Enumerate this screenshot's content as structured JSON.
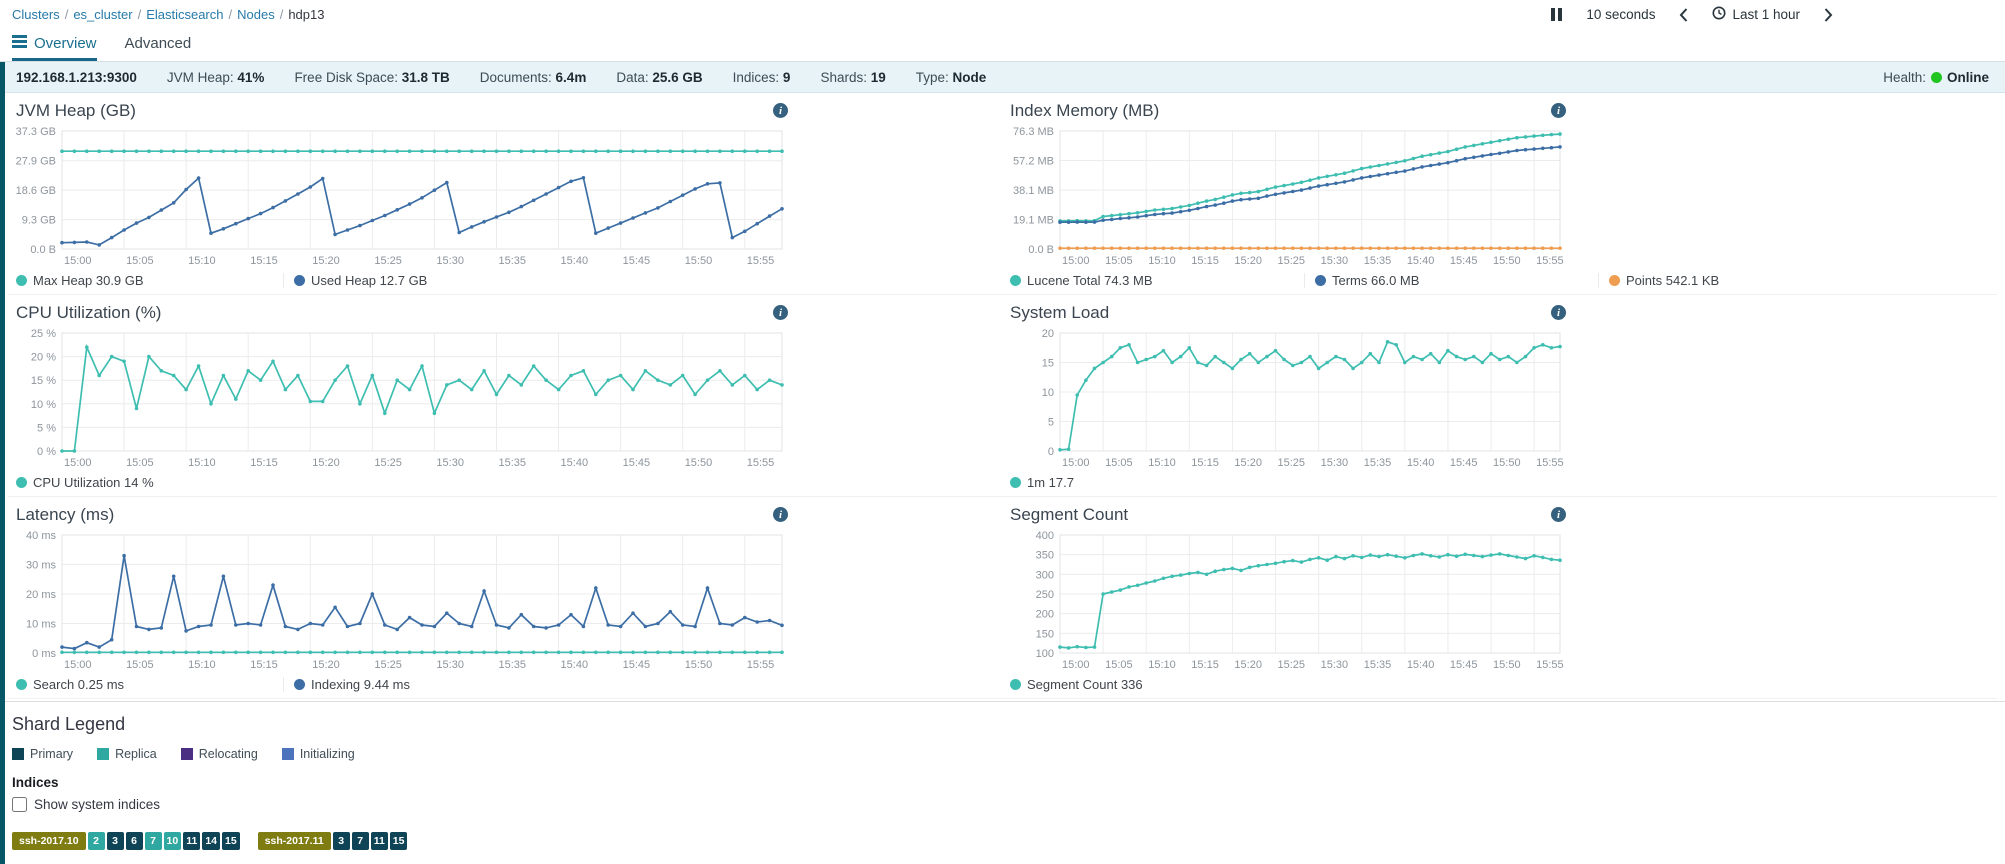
{
  "breadcrumb": {
    "links": [
      "Clusters",
      "es_cluster",
      "Elasticsearch",
      "Nodes"
    ],
    "current": "hdp13",
    "separator": "/"
  },
  "toolbar": {
    "refresh_interval": "10 seconds",
    "time_range": "Last 1 hour",
    "icons": {
      "pause": "pause-bars",
      "prev": "chevron-left",
      "clock": "clock",
      "next": "chevron-right"
    }
  },
  "tabs": [
    {
      "label": "Overview",
      "active": true,
      "icon": "list-icon"
    },
    {
      "label": "Advanced",
      "active": false
    }
  ],
  "status_bar": {
    "items": [
      {
        "label": "",
        "value": "192.168.1.213:9300"
      },
      {
        "label": "JVM Heap:",
        "value": "41%"
      },
      {
        "label": "Free Disk Space:",
        "value": "31.8 TB"
      },
      {
        "label": "Documents:",
        "value": "6.4m"
      },
      {
        "label": "Data:",
        "value": "25.6 GB"
      },
      {
        "label": "Indices:",
        "value": "9"
      },
      {
        "label": "Shards:",
        "value": "19"
      },
      {
        "label": "Type:",
        "value": "Node"
      }
    ],
    "health_label": "Health:",
    "health_value": "Online",
    "health_color": "#21c521"
  },
  "colors": {
    "teal_series": "#3ebeb0",
    "blue_series": "#3c6ea5",
    "orange_series": "#ef9d51",
    "accent_strip": "#075666",
    "active_tab": "#17678a",
    "link": "#2679a9",
    "status_bg": "#e8f3f8"
  },
  "chart_data": [
    {
      "type": "line",
      "title": "JVM Heap (GB)",
      "x_max_minutes": 58,
      "x_ticks": [
        "15:00",
        "15:05",
        "15:10",
        "15:15",
        "15:20",
        "15:25",
        "15:30",
        "15:35",
        "15:40",
        "15:45",
        "15:50",
        "15:55"
      ],
      "ylim": [
        0,
        37.3
      ],
      "y_ticks": [
        {
          "v": 37.3,
          "label": "37.3 GB"
        },
        {
          "v": 27.9,
          "label": "27.9 GB"
        },
        {
          "v": 18.6,
          "label": "18.6 GB"
        },
        {
          "v": 9.3,
          "label": "9.3 GB"
        },
        {
          "v": 0,
          "label": "0.0 B"
        }
      ],
      "series": [
        {
          "name": "Max Heap",
          "legend": "Max Heap 30.9 GB",
          "color": "#3ebeb0",
          "constant": 30.9
        },
        {
          "name": "Used Heap",
          "legend": "Used Heap 12.7 GB",
          "color": "#3c6ea5",
          "values": [
            2.0,
            2.1,
            2.2,
            1.3,
            3.6,
            6.0,
            8.2,
            10.0,
            12.3,
            14.6,
            18.8,
            22.4,
            5.0,
            6.4,
            8.0,
            9.6,
            11.2,
            13.1,
            15.2,
            17.4,
            19.6,
            22.3,
            4.6,
            6.0,
            7.4,
            9.0,
            10.6,
            12.4,
            14.2,
            16.2,
            18.6,
            21.0,
            5.2,
            7.0,
            8.6,
            10.1,
            11.6,
            13.4,
            15.4,
            17.4,
            19.4,
            21.4,
            22.5,
            5.0,
            6.6,
            8.2,
            9.8,
            11.4,
            13.0,
            15.0,
            17.0,
            19.0,
            20.6,
            20.9,
            3.6,
            5.6,
            8.0,
            10.4,
            12.7
          ]
        }
      ]
    },
    {
      "type": "line",
      "title": "Index Memory (MB)",
      "x_max_minutes": 58,
      "x_ticks": [
        "15:00",
        "15:05",
        "15:10",
        "15:15",
        "15:20",
        "15:25",
        "15:30",
        "15:35",
        "15:40",
        "15:45",
        "15:50",
        "15:55"
      ],
      "ylim": [
        0,
        76.3
      ],
      "y_ticks": [
        {
          "v": 76.3,
          "label": "76.3 MB"
        },
        {
          "v": 57.2,
          "label": "57.2 MB"
        },
        {
          "v": 38.1,
          "label": "38.1 MB"
        },
        {
          "v": 19.1,
          "label": "19.1 MB"
        },
        {
          "v": 0,
          "label": "0.0 B"
        }
      ],
      "series": [
        {
          "name": "Lucene Total",
          "legend": "Lucene Total 74.3 MB",
          "color": "#3ebeb0",
          "values": [
            18.2,
            18.2,
            18.3,
            18.2,
            18.3,
            21.0,
            21.6,
            22.2,
            22.8,
            23.4,
            24.3,
            25.2,
            25.7,
            26.2,
            27.2,
            28.2,
            29.6,
            31.0,
            32.1,
            33.5,
            35.0,
            36.0,
            36.5,
            37.1,
            38.6,
            40.0,
            41.0,
            42.0,
            43.1,
            44.5,
            46.0,
            47.0,
            48.0,
            49.0,
            50.5,
            52.0,
            53.0,
            54.0,
            55.0,
            56.0,
            57.0,
            58.5,
            60.0,
            61.0,
            62.0,
            63.0,
            64.5,
            66.0,
            67.0,
            68.0,
            69.0,
            70.0,
            71.0,
            72.0,
            72.5,
            73.0,
            73.5,
            74.0,
            74.3
          ]
        },
        {
          "name": "Terms",
          "legend": "Terms 66.0 MB",
          "color": "#3c6ea5",
          "values": [
            17.3,
            17.3,
            17.4,
            17.3,
            17.4,
            18.6,
            19.1,
            19.7,
            20.2,
            20.7,
            21.5,
            22.3,
            22.8,
            23.2,
            24.1,
            25.0,
            26.2,
            27.4,
            28.4,
            29.6,
            31.0,
            31.9,
            32.3,
            32.8,
            34.2,
            35.4,
            36.3,
            37.2,
            38.1,
            39.4,
            40.7,
            41.6,
            42.5,
            43.4,
            44.7,
            46.0,
            46.9,
            47.8,
            48.7,
            49.6,
            50.4,
            51.8,
            53.1,
            54.0,
            54.9,
            55.8,
            57.1,
            58.4,
            59.3,
            60.2,
            61.1,
            61.9,
            62.8,
            63.7,
            64.2,
            64.6,
            65.1,
            65.5,
            66.0
          ]
        },
        {
          "name": "Points",
          "legend": "Points 542.1 KB",
          "color": "#ef9d51",
          "constant": 0.5
        }
      ]
    },
    {
      "type": "line",
      "title": "CPU Utilization (%)",
      "x_max_minutes": 58,
      "x_ticks": [
        "15:00",
        "15:05",
        "15:10",
        "15:15",
        "15:20",
        "15:25",
        "15:30",
        "15:35",
        "15:40",
        "15:45",
        "15:50",
        "15:55"
      ],
      "ylim": [
        0,
        25
      ],
      "y_ticks": [
        {
          "v": 25,
          "label": "25 %"
        },
        {
          "v": 20,
          "label": "20 %"
        },
        {
          "v": 15,
          "label": "15 %"
        },
        {
          "v": 10,
          "label": "10 %"
        },
        {
          "v": 5,
          "label": "5 %"
        },
        {
          "v": 0,
          "label": "0 %"
        }
      ],
      "series": [
        {
          "name": "CPU Utilization",
          "legend": "CPU Utilization 14 %",
          "color": "#3ebeb0",
          "values": [
            0,
            0,
            22,
            16,
            20,
            19,
            9,
            20,
            17,
            16,
            13,
            18,
            10,
            16,
            11,
            17,
            15,
            19,
            13,
            16,
            10.5,
            10.5,
            15,
            18,
            10,
            16,
            8,
            15,
            13,
            18,
            8,
            14,
            15,
            13,
            17,
            12,
            16,
            14,
            18,
            15,
            13,
            16,
            17,
            12,
            15,
            16,
            13,
            17,
            15,
            14,
            16,
            12,
            15,
            17,
            14,
            16,
            13,
            15,
            14
          ]
        }
      ]
    },
    {
      "type": "line",
      "title": "System Load",
      "x_max_minutes": 58,
      "x_ticks": [
        "15:00",
        "15:05",
        "15:10",
        "15:15",
        "15:20",
        "15:25",
        "15:30",
        "15:35",
        "15:40",
        "15:45",
        "15:50",
        "15:55"
      ],
      "ylim": [
        0,
        20
      ],
      "y_ticks": [
        {
          "v": 20,
          "label": "20"
        },
        {
          "v": 15,
          "label": "15"
        },
        {
          "v": 10,
          "label": "10"
        },
        {
          "v": 5,
          "label": "5"
        },
        {
          "v": 0,
          "label": "0"
        }
      ],
      "series": [
        {
          "name": "1m",
          "legend": "1m 17.7",
          "color": "#3ebeb0",
          "values": [
            0.2,
            0.3,
            9.5,
            12,
            14,
            15,
            16,
            17.5,
            18,
            15,
            15.5,
            16,
            17,
            15,
            16,
            17.5,
            15,
            14.5,
            16,
            15,
            14,
            15.5,
            16.5,
            15,
            16,
            17,
            15.5,
            14.5,
            15,
            16,
            14,
            15,
            16,
            15.5,
            14,
            15,
            16.5,
            15,
            18.5,
            18,
            15,
            16,
            15.5,
            16.5,
            15,
            17,
            16,
            15.5,
            16,
            15,
            16.5,
            15.5,
            16,
            15,
            16,
            17.5,
            18,
            17.5,
            17.7
          ]
        }
      ]
    },
    {
      "type": "line",
      "title": "Latency (ms)",
      "x_max_minutes": 58,
      "x_ticks": [
        "15:00",
        "15:05",
        "15:10",
        "15:15",
        "15:20",
        "15:25",
        "15:30",
        "15:35",
        "15:40",
        "15:45",
        "15:50",
        "15:55"
      ],
      "ylim": [
        0,
        40
      ],
      "y_ticks": [
        {
          "v": 40,
          "label": "40 ms"
        },
        {
          "v": 30,
          "label": "30 ms"
        },
        {
          "v": 20,
          "label": "20 ms"
        },
        {
          "v": 10,
          "label": "10 ms"
        },
        {
          "v": 0,
          "label": "0 ms"
        }
      ],
      "series": [
        {
          "name": "Search",
          "legend": "Search 0.25 ms",
          "color": "#3ebeb0",
          "constant": 0.25
        },
        {
          "name": "Indexing",
          "legend": "Indexing 9.44 ms",
          "color": "#3c6ea5",
          "values": [
            2,
            1.5,
            3.5,
            2,
            4.5,
            33,
            9,
            8,
            8.5,
            26,
            7.5,
            9,
            9.5,
            26,
            9.5,
            10,
            9.5,
            23,
            9,
            8,
            10,
            9.5,
            15.5,
            9,
            10,
            20,
            9.5,
            8,
            12,
            9.5,
            9,
            13.5,
            10,
            9,
            21,
            9.5,
            8.5,
            13,
            9,
            8.5,
            9.5,
            13,
            9,
            22,
            9.5,
            9,
            13.5,
            9,
            10,
            14,
            9.5,
            9,
            22,
            10,
            9.5,
            12,
            10.5,
            11,
            9.4
          ]
        }
      ]
    },
    {
      "type": "line",
      "title": "Segment Count",
      "x_max_minutes": 58,
      "x_ticks": [
        "15:00",
        "15:05",
        "15:10",
        "15:15",
        "15:20",
        "15:25",
        "15:30",
        "15:35",
        "15:40",
        "15:45",
        "15:50",
        "15:55"
      ],
      "ylim": [
        100,
        400
      ],
      "y_ticks": [
        {
          "v": 400,
          "label": "400"
        },
        {
          "v": 350,
          "label": "350"
        },
        {
          "v": 300,
          "label": "300"
        },
        {
          "v": 250,
          "label": "250"
        },
        {
          "v": 200,
          "label": "200"
        },
        {
          "v": 150,
          "label": "150"
        },
        {
          "v": 100,
          "label": "100"
        }
      ],
      "series": [
        {
          "name": "Segment Count",
          "legend": "Segment Count 336",
          "color": "#3ebeb0",
          "values": [
            115,
            113,
            116,
            114,
            115,
            250,
            255,
            260,
            268,
            272,
            278,
            283,
            290,
            295,
            298,
            302,
            305,
            300,
            308,
            312,
            315,
            310,
            318,
            322,
            325,
            328,
            332,
            335,
            331,
            338,
            342,
            336,
            345,
            340,
            347,
            343,
            349,
            345,
            350,
            346,
            342,
            348,
            352,
            347,
            344,
            350,
            346,
            351,
            348,
            345,
            349,
            352,
            348,
            344,
            340,
            347,
            343,
            338,
            336
          ]
        }
      ]
    }
  ],
  "shard_legend": {
    "title": "Shard Legend",
    "items": [
      {
        "key": "primary",
        "label": "Primary",
        "color": "#0f4457"
      },
      {
        "key": "replica",
        "label": "Replica",
        "color": "#2fa8a2"
      },
      {
        "key": "relocating",
        "label": "Relocating",
        "color": "#4a2e82"
      },
      {
        "key": "initializing",
        "label": "Initializing",
        "color": "#4d73bd"
      }
    ],
    "indices_label": "Indices",
    "show_system_label": "Show system indices",
    "show_system_checked": false,
    "index_badge_color": "#7f7c11"
  },
  "shard_rows": [
    {
      "index": "ssh-2017.10",
      "shards": [
        {
          "n": "2",
          "type": "replica"
        },
        {
          "n": "3",
          "type": "primary"
        },
        {
          "n": "6",
          "type": "primary"
        },
        {
          "n": "7",
          "type": "replica"
        },
        {
          "n": "10",
          "type": "replica"
        },
        {
          "n": "11",
          "type": "primary"
        },
        {
          "n": "14",
          "type": "primary"
        },
        {
          "n": "15",
          "type": "primary"
        }
      ]
    },
    {
      "index": "ssh-2017.11",
      "shards": [
        {
          "n": "3",
          "type": "primary"
        },
        {
          "n": "7",
          "type": "primary"
        },
        {
          "n": "11",
          "type": "primary"
        },
        {
          "n": "15",
          "type": "primary"
        }
      ]
    }
  ]
}
